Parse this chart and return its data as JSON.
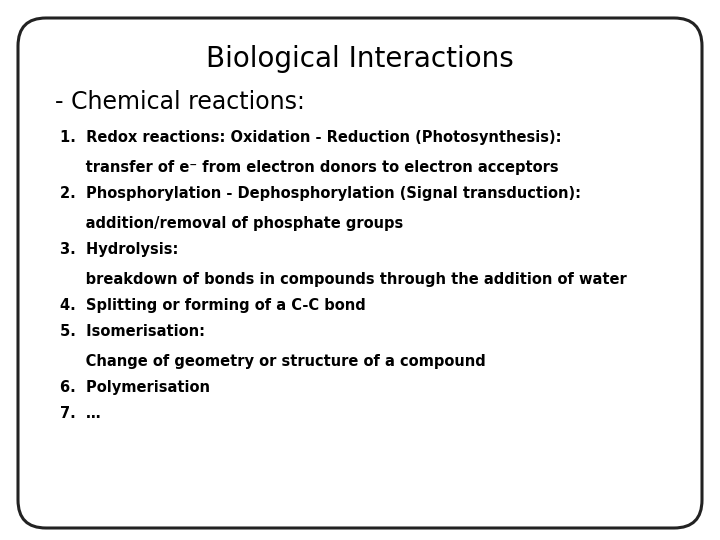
{
  "title": "Biological Interactions",
  "subtitle": "- Chemical reactions:",
  "lines": [
    {
      "text": "1.  Redox reactions: Oxidation - Reduction (Photosynthesis):",
      "indent": 0
    },
    {
      "text": "     transfer of e⁻ from electron donors to electron acceptors",
      "indent": 1
    },
    {
      "text": "2.  Phosphorylation - Dephosphorylation (Signal transduction):",
      "indent": 0
    },
    {
      "text": "     addition/removal of phosphate groups",
      "indent": 1
    },
    {
      "text": "3.  Hydrolysis:",
      "indent": 0
    },
    {
      "text": "     breakdown of bonds in compounds through the addition of water",
      "indent": 1
    },
    {
      "text": "4.  Splitting or forming of a C-C bond",
      "indent": 0
    },
    {
      "text": "5.  Isomerisation:",
      "indent": 0
    },
    {
      "text": "     Change of geometry or structure of a compound",
      "indent": 1
    },
    {
      "text": "6.  Polymerisation",
      "indent": 0
    },
    {
      "text": "7.  …",
      "indent": 0
    }
  ],
  "bg_color": "#ffffff",
  "text_color": "#000000",
  "title_fontsize": 20,
  "subtitle_fontsize": 17,
  "body_fontsize": 10.5,
  "border_color": "#222222",
  "border_linewidth": 2.2
}
